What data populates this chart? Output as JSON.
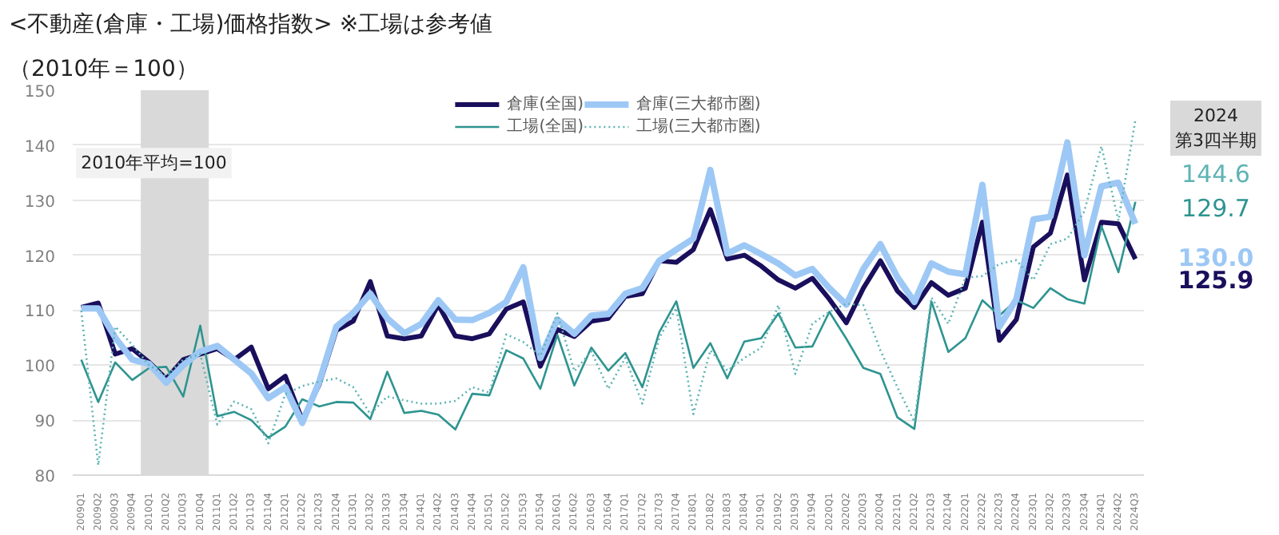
{
  "chart_data": {
    "type": "line",
    "title": "<不動産(倉庫・工場)価格指数> ※工場は参考値",
    "subtitle": "（2010年＝100）",
    "categories": [
      "2009Q1",
      "2009Q2",
      "2009Q3",
      "2009Q4",
      "2010Q1",
      "2010Q2",
      "2010Q3",
      "2010Q4",
      "2011Q1",
      "2011Q2",
      "2011Q3",
      "2011Q4",
      "2012Q1",
      "2012Q2",
      "2012Q3",
      "2012Q4",
      "2013Q1",
      "2013Q2",
      "2013Q3",
      "2013Q4",
      "2014Q1",
      "2014Q2",
      "2014Q3",
      "2014Q4",
      "2015Q1",
      "2015Q2",
      "2015Q3",
      "2015Q4",
      "2016Q1",
      "2016Q2",
      "2016Q3",
      "2016Q4",
      "2017Q1",
      "2017Q2",
      "2017Q3",
      "2017Q4",
      "2018Q1",
      "2018Q2",
      "2018Q3",
      "2018Q4",
      "2019Q1",
      "2019Q2",
      "2019Q3",
      "2019Q4",
      "2020Q1",
      "2020Q2",
      "2020Q3",
      "2020Q4",
      "2021Q1",
      "2021Q2",
      "2021Q3",
      "2021Q4",
      "2022Q1",
      "2022Q2",
      "2022Q3",
      "2022Q4",
      "2023Q1",
      "2023Q2",
      "2023Q3",
      "2023Q4",
      "2024Q1",
      "2024Q2",
      "2024Q3"
    ],
    "series": [
      {
        "name": "倉庫(全国)",
        "color": "#1a0f5c",
        "line_style": "solid",
        "values": [
          110.5,
          111.3,
          102,
          103,
          100.5,
          97.5,
          101,
          102,
          103,
          101,
          103.3,
          95.7,
          98,
          90,
          96.5,
          106.3,
          108,
          115.2,
          105.3,
          104.8,
          105.3,
          111,
          105.3,
          104.8,
          105.7,
          110.2,
          111.5,
          99.8,
          106.5,
          105.2,
          108,
          108.5,
          112.5,
          113,
          119,
          118.7,
          121,
          128.3,
          119.3,
          120,
          118,
          115.5,
          114,
          115.8,
          112,
          107.7,
          114,
          119,
          113.5,
          110.5,
          115,
          112.7,
          114,
          126,
          104.5,
          108.3,
          121.5,
          124,
          134.6,
          115.5,
          126,
          125.7,
          119.3
        ]
      },
      {
        "name": "工場(全国)",
        "color": "#2e9490",
        "line_style": "solid",
        "values": [
          101,
          93.3,
          100.5,
          97.3,
          99.5,
          99.7,
          94.3,
          107.2,
          90.7,
          91.5,
          90,
          86.8,
          88.8,
          93.8,
          92.5,
          93.3,
          93.2,
          90.2,
          98.8,
          91.3,
          91.7,
          91,
          88.3,
          94.8,
          94.5,
          102.7,
          101.2,
          95.7,
          105.5,
          96.3,
          103.2,
          99,
          102.2,
          96,
          106,
          111.6,
          99.5,
          104,
          97.6,
          104.3,
          104.9,
          109.4,
          103.2,
          103.4,
          109.7,
          104.8,
          99.5,
          98.4,
          90.5,
          88.4,
          111.6,
          102.4,
          104.9,
          111.8,
          109,
          111.8,
          110.4,
          114,
          112,
          111.2,
          125.3,
          116.9,
          129.7
        ]
      },
      {
        "name": "倉庫(三大都市圏)",
        "color": "#9dc8f5",
        "line_style": "solid",
        "values": [
          110.3,
          110.3,
          105,
          101,
          100.2,
          96.8,
          100,
          102.5,
          103.5,
          101,
          98.5,
          94,
          96,
          89.5,
          97,
          107,
          109.5,
          113,
          108.5,
          105.8,
          107.5,
          111.8,
          108.3,
          108.2,
          109.5,
          111.5,
          117.8,
          101.3,
          108.3,
          105.7,
          109,
          109.3,
          113,
          114,
          119,
          121,
          123,
          135.5,
          120.3,
          121.8,
          120.2,
          118.5,
          116.3,
          117.5,
          114,
          111,
          117.5,
          122,
          116,
          111.5,
          118.5,
          117,
          116.5,
          132.8,
          107,
          112,
          126.5,
          127,
          140.5,
          120,
          132.5,
          133.2,
          125.7
        ]
      },
      {
        "name": "工場(三大都市圏)",
        "color": "#5fb3b3",
        "line_style": "dotted",
        "values": [
          109.9,
          81.8,
          107,
          103.7,
          100,
          98,
          101,
          102,
          89.2,
          93.4,
          92,
          85.8,
          94.7,
          96.2,
          97,
          97.6,
          96,
          91.1,
          94.3,
          93.6,
          93,
          93,
          93.5,
          96,
          95,
          105.6,
          104.2,
          101.7,
          109.4,
          98.9,
          102.5,
          95.7,
          101.3,
          93,
          105,
          110.4,
          91.1,
          102.7,
          99,
          101.3,
          103.2,
          110.9,
          98.4,
          107.5,
          109.7,
          111.2,
          110.9,
          102.7,
          96,
          89.7,
          112.3,
          107.5,
          115.9,
          116.2,
          118.4,
          119.1,
          115.5,
          122,
          123,
          128,
          139.8,
          126.3,
          144.6
        ]
      }
    ],
    "ylim": [
      80,
      150
    ],
    "yticks": [
      80,
      90,
      100,
      110,
      120,
      130,
      140,
      150
    ],
    "grid": "y",
    "legend": "top",
    "bands": [
      {
        "axis": "x",
        "from": "2010Q1",
        "to": "2010Q4",
        "color": "#d9d9d9"
      }
    ],
    "annotations": [
      "2010年平均=100",
      "2024\n第3四半期",
      "144.6",
      "129.7",
      "130.0",
      "125.9"
    ]
  }
}
